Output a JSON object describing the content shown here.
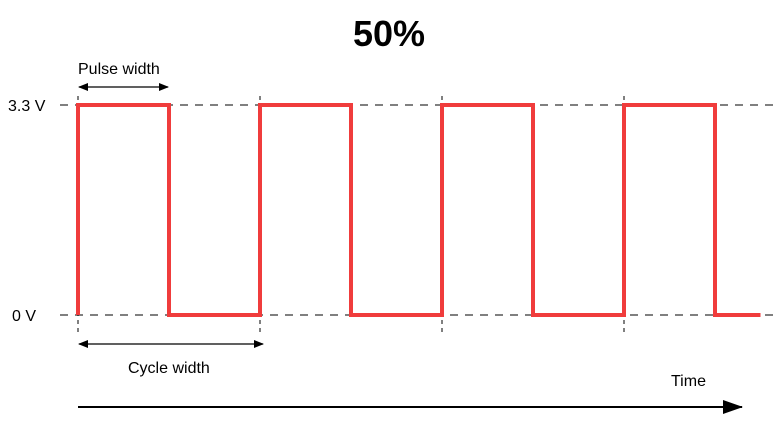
{
  "diagram": {
    "title": "50%",
    "labels": {
      "high_voltage": "3.3 V",
      "low_voltage": "0 V",
      "pulse_width": "Pulse width",
      "cycle_width": "Cycle width",
      "time": "Time"
    },
    "duty_cycle_percent": 50,
    "periods_shown": 3.75,
    "colors": {
      "signal": "#f03c3c",
      "text": "#000000"
    }
  }
}
